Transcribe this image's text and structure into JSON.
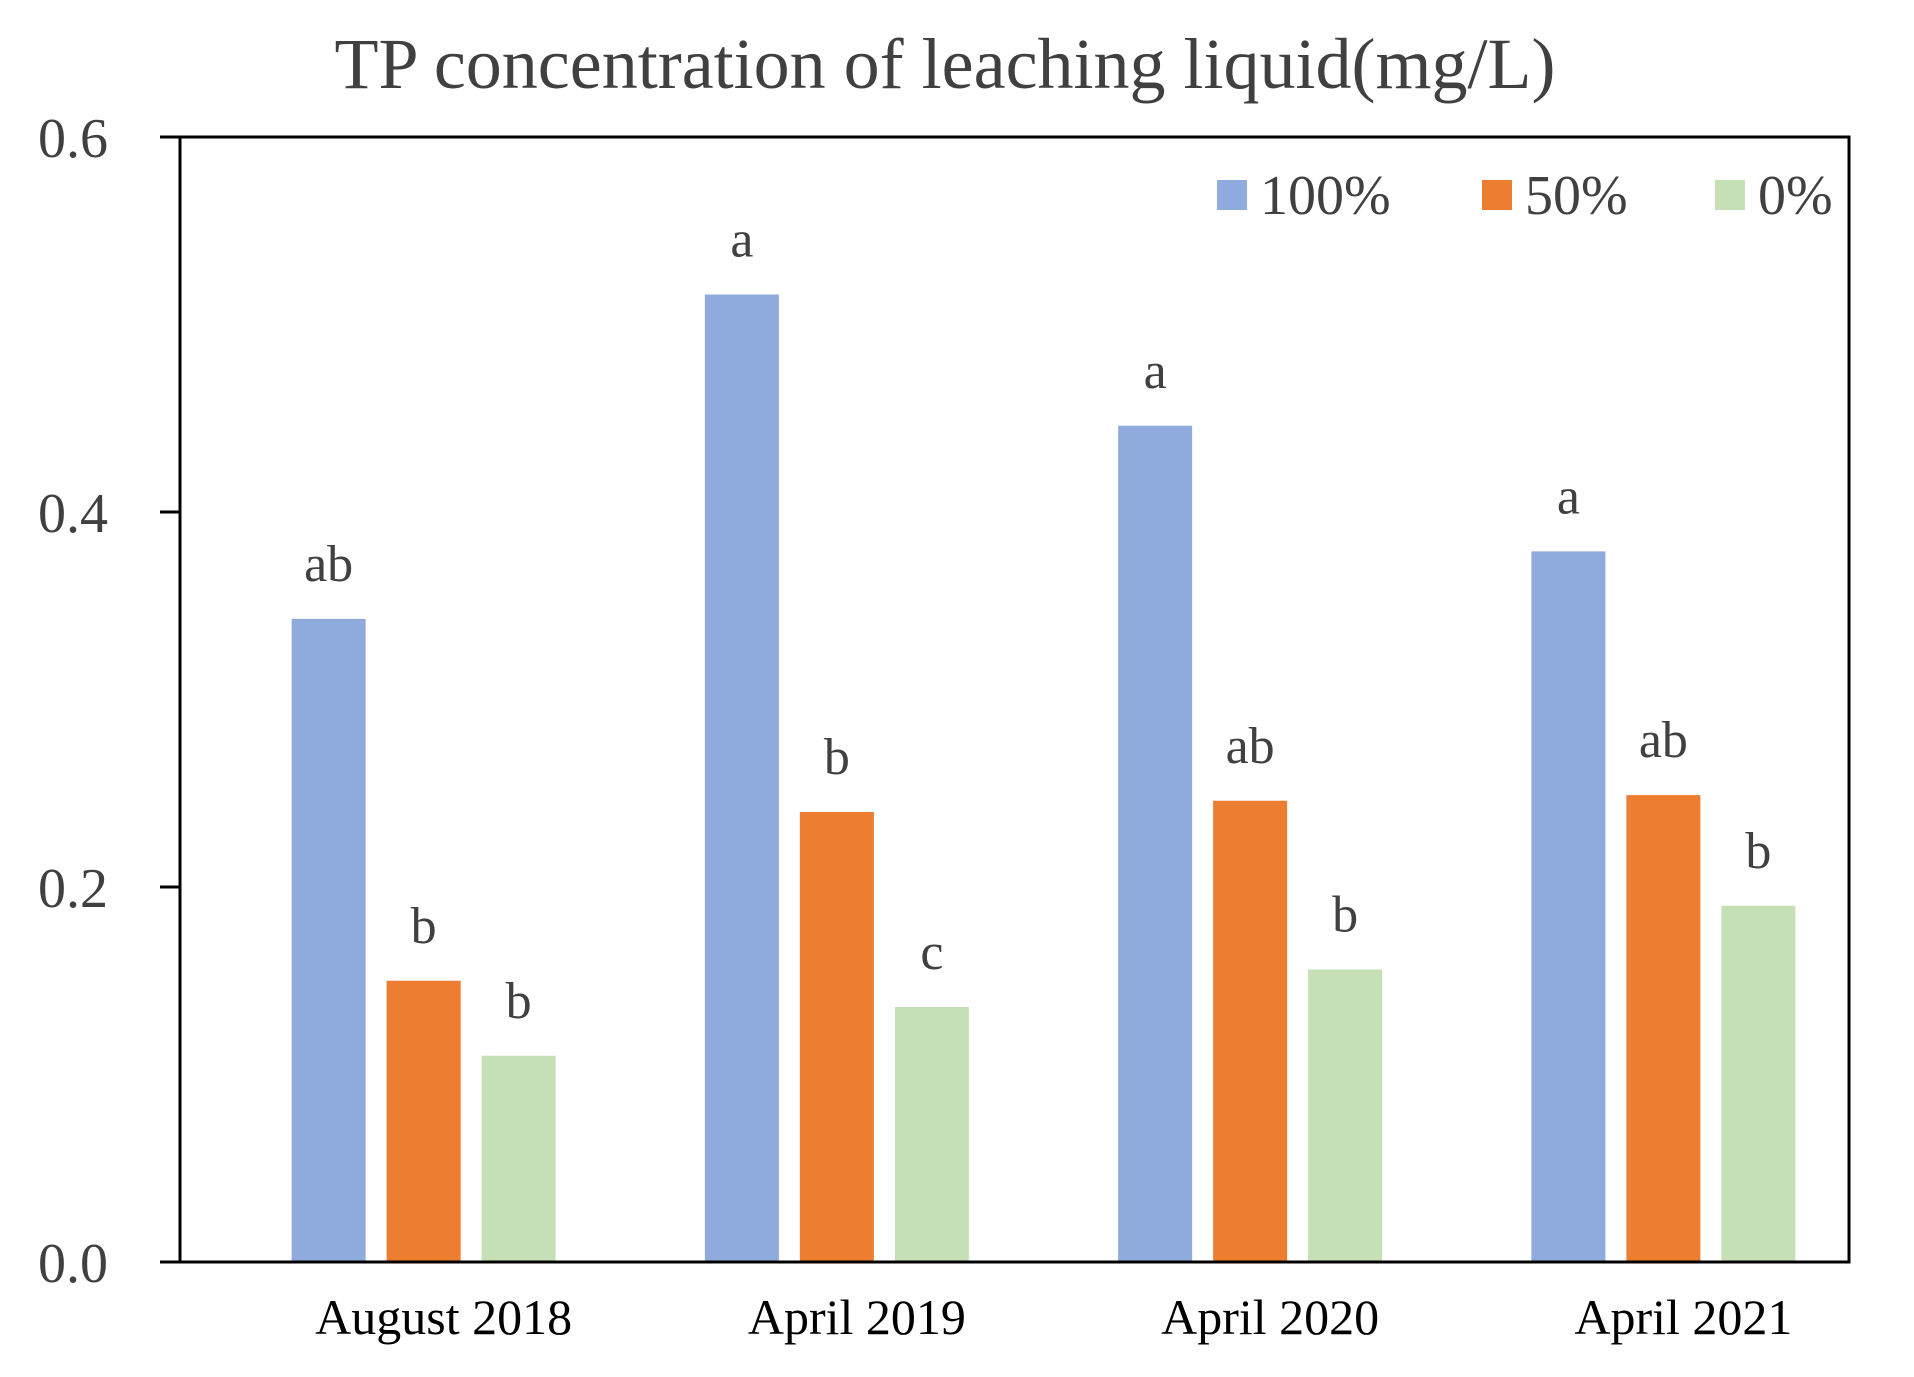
{
  "chart_data": {
    "type": "bar",
    "title": "TP concentration of leaching liquid(mg/L)",
    "xlabel": "",
    "ylabel": "",
    "ylim": [
      0,
      0.6
    ],
    "yticks": [
      0.0,
      0.2,
      0.4,
      0.6
    ],
    "ytick_labels": [
      "0.0",
      "0.2",
      "0.4",
      "0.6"
    ],
    "categories": [
      "August 2018",
      "April 2019",
      "April 2020",
      "April 2021"
    ],
    "series": [
      {
        "name": "100%",
        "color": "#8faadc",
        "values": [
          0.343,
          0.516,
          0.446,
          0.379
        ],
        "labels": [
          "ab",
          "a",
          "a",
          "a"
        ]
      },
      {
        "name": "50%",
        "color": "#ed7d31",
        "values": [
          0.15,
          0.24,
          0.246,
          0.249
        ],
        "labels": [
          "b",
          "b",
          "ab",
          "ab"
        ]
      },
      {
        "name": "0%",
        "color": "#c5e0b4",
        "values": [
          0.11,
          0.136,
          0.156,
          0.19
        ],
        "labels": [
          "b",
          "c",
          "b",
          "b"
        ]
      }
    ],
    "legend_position": "top-right",
    "grid": false
  }
}
